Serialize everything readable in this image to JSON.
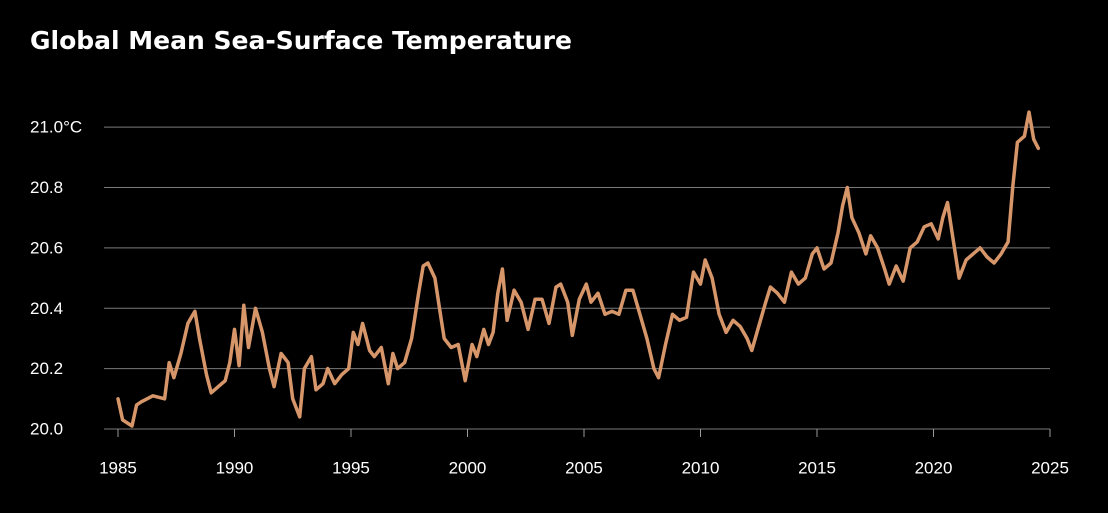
{
  "chart_data": {
    "type": "line",
    "title": "Global Mean Sea-Surface Temperature",
    "x": [
      1985,
      1985.2,
      1985.6,
      1985.8,
      1986,
      1986.5,
      1987,
      1987.2,
      1987.4,
      1987.7,
      1988,
      1988.3,
      1988.5,
      1988.8,
      1989,
      1989.3,
      1989.6,
      1989.8,
      1990,
      1990.2,
      1990.4,
      1990.6,
      1990.9,
      1991.2,
      1991.5,
      1991.7,
      1992,
      1992.3,
      1992.5,
      1992.8,
      1993,
      1993.3,
      1993.5,
      1993.8,
      1994,
      1994.3,
      1994.6,
      1994.9,
      1995.1,
      1995.3,
      1995.5,
      1995.8,
      1996,
      1996.3,
      1996.6,
      1996.8,
      1997,
      1997.3,
      1997.6,
      1997.9,
      1998.1,
      1998.3,
      1998.6,
      1998.8,
      1999,
      1999.3,
      1999.6,
      1999.9,
      2000.2,
      2000.4,
      2000.7,
      2000.9,
      2001.1,
      2001.3,
      2001.5,
      2001.7,
      2002,
      2002.3,
      2002.6,
      2002.9,
      2003.2,
      2003.5,
      2003.8,
      2004,
      2004.3,
      2004.5,
      2004.8,
      2005.1,
      2005.3,
      2005.6,
      2005.9,
      2006.2,
      2006.5,
      2006.8,
      2007.1,
      2007.4,
      2007.7,
      2008,
      2008.2,
      2008.5,
      2008.8,
      2009.1,
      2009.4,
      2009.7,
      2010,
      2010.2,
      2010.5,
      2010.8,
      2011.1,
      2011.4,
      2011.7,
      2012,
      2012.2,
      2012.5,
      2012.8,
      2013,
      2013.3,
      2013.6,
      2013.9,
      2014.2,
      2014.5,
      2014.8,
      2015,
      2015.3,
      2015.6,
      2015.9,
      2016.1,
      2016.3,
      2016.5,
      2016.8,
      2017.1,
      2017.3,
      2017.6,
      2017.9,
      2018.1,
      2018.4,
      2018.7,
      2019,
      2019.3,
      2019.6,
      2019.9,
      2020.2,
      2020.4,
      2020.6,
      2020.8,
      2021.1,
      2021.4,
      2021.7,
      2022,
      2022.3,
      2022.6,
      2022.9,
      2023.2,
      2023.4,
      2023.6,
      2023.9,
      2024.1,
      2024.3,
      2024.5
    ],
    "values": [
      20.1,
      20.03,
      20.01,
      20.08,
      20.09,
      20.11,
      20.1,
      20.22,
      20.17,
      20.25,
      20.35,
      20.39,
      20.3,
      20.18,
      20.12,
      20.14,
      20.16,
      20.22,
      20.33,
      20.21,
      20.41,
      20.27,
      20.4,
      20.32,
      20.2,
      20.14,
      20.25,
      20.22,
      20.1,
      20.04,
      20.2,
      20.24,
      20.13,
      20.15,
      20.2,
      20.15,
      20.18,
      20.2,
      20.32,
      20.28,
      20.35,
      20.26,
      20.24,
      20.27,
      20.15,
      20.25,
      20.2,
      20.22,
      20.3,
      20.45,
      20.54,
      20.55,
      20.5,
      20.4,
      20.3,
      20.27,
      20.28,
      20.16,
      20.28,
      20.24,
      20.33,
      20.28,
      20.32,
      20.45,
      20.53,
      20.36,
      20.46,
      20.42,
      20.33,
      20.43,
      20.43,
      20.35,
      20.47,
      20.48,
      20.42,
      20.31,
      20.43,
      20.48,
      20.42,
      20.45,
      20.38,
      20.39,
      20.38,
      20.46,
      20.46,
      20.38,
      20.3,
      20.2,
      20.17,
      20.28,
      20.38,
      20.36,
      20.37,
      20.52,
      20.48,
      20.56,
      20.5,
      20.38,
      20.32,
      20.36,
      20.34,
      20.3,
      20.26,
      20.34,
      20.42,
      20.47,
      20.45,
      20.42,
      20.52,
      20.48,
      20.5,
      20.58,
      20.6,
      20.53,
      20.55,
      20.65,
      20.74,
      20.8,
      20.7,
      20.65,
      20.58,
      20.64,
      20.6,
      20.53,
      20.48,
      20.54,
      20.49,
      20.6,
      20.62,
      20.67,
      20.68,
      20.63,
      20.7,
      20.75,
      20.65,
      20.5,
      20.56,
      20.58,
      20.6,
      20.57,
      20.55,
      20.58,
      20.62,
      20.8,
      20.95,
      20.97,
      21.05,
      20.96,
      20.93
    ],
    "color": "#d6966a",
    "xlim": [
      1984.4,
      2025
    ],
    "xticks": [
      1985,
      1990,
      1995,
      2000,
      2005,
      2010,
      2015,
      2020,
      2025
    ],
    "ylim": [
      20,
      21.1
    ],
    "yticks": [
      {
        "value": 20,
        "label": "20.0"
      },
      20.2,
      20.4,
      20.6,
      20.8,
      {
        "value": 21,
        "label": "21.0°C"
      }
    ],
    "grid": true
  }
}
